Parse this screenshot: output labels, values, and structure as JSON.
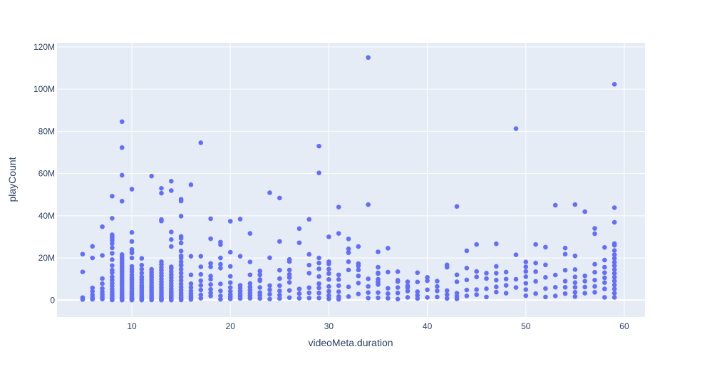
{
  "chart_data": {
    "type": "scatter",
    "title": "",
    "xlabel": "videoMeta.duration",
    "ylabel": "playCount",
    "xlim": [
      2.4,
      62.1
    ],
    "ylim": [
      -8000000,
      122000000
    ],
    "x_ticks": [
      10,
      20,
      30,
      40,
      50,
      60
    ],
    "y_ticks": [
      0,
      20000000,
      40000000,
      60000000,
      80000000,
      100000000,
      120000000
    ],
    "y_tick_labels": [
      "0",
      "20M",
      "40M",
      "60M",
      "80M",
      "100M",
      "120M"
    ],
    "grid": true,
    "legend": "none",
    "colors": {
      "marker": "#636efa",
      "plot_bg": "#e5ecf6",
      "grid": "#ffffff",
      "text": "#2a3f5f"
    },
    "series": [
      {
        "x": [
          5,
          5,
          5,
          5,
          6,
          6,
          6,
          6,
          6,
          6,
          6,
          7,
          7,
          7,
          7,
          7,
          7,
          7,
          7,
          7,
          8,
          8,
          8,
          8,
          8,
          8,
          8,
          8,
          8,
          8,
          8,
          8,
          8,
          8,
          8,
          8,
          8,
          8,
          8,
          8,
          8,
          8,
          8,
          8,
          9,
          9,
          9,
          9,
          9,
          9,
          9,
          9,
          9,
          9,
          9,
          9,
          9,
          9,
          9,
          9,
          9,
          9,
          9,
          9,
          9,
          9,
          9,
          9,
          9,
          9,
          9,
          9,
          9,
          9,
          9,
          10,
          10,
          10,
          10,
          10,
          10,
          10,
          10,
          10,
          10,
          10,
          10,
          10,
          10,
          10,
          10,
          10,
          10,
          10,
          10,
          10,
          10,
          10,
          10,
          10,
          10,
          11,
          11,
          11,
          11,
          11,
          11,
          11,
          11,
          11,
          11,
          11,
          11,
          11,
          11,
          11,
          11,
          11,
          11,
          12,
          12,
          12,
          12,
          12,
          12,
          12,
          12,
          12,
          12,
          12,
          12,
          12,
          12,
          12,
          12,
          13,
          13,
          13,
          13,
          13,
          13,
          13,
          13,
          13,
          13,
          13,
          13,
          13,
          13,
          13,
          13,
          13,
          13,
          13,
          13,
          13,
          13,
          13,
          14,
          14,
          14,
          14,
          14,
          14,
          14,
          14,
          14,
          14,
          14,
          14,
          14,
          14,
          14,
          14,
          14,
          14,
          14,
          14,
          14,
          14,
          15,
          15,
          15,
          15,
          15,
          15,
          15,
          15,
          15,
          15,
          15,
          15,
          15,
          15,
          15,
          15,
          15,
          15,
          15,
          15,
          15,
          15,
          15,
          15,
          16,
          16,
          16,
          16,
          16,
          16,
          16,
          16,
          16,
          16,
          17,
          17,
          17,
          17,
          17,
          17,
          17,
          17,
          17,
          18,
          18,
          18,
          18,
          18,
          18,
          18,
          18,
          18,
          18,
          19,
          19,
          19,
          19,
          19,
          19,
          19,
          19,
          19,
          20,
          20,
          20,
          20,
          20,
          20,
          20,
          20,
          20,
          20,
          21,
          21,
          21,
          21,
          21,
          21,
          21,
          21,
          22,
          22,
          22,
          22,
          22,
          22,
          22,
          22,
          22,
          23,
          23,
          23,
          23,
          23,
          23,
          23,
          23,
          24,
          24,
          24,
          24,
          24,
          24,
          25,
          25,
          25,
          25,
          25,
          25,
          25,
          25,
          26,
          26,
          26,
          26,
          26,
          26,
          26,
          26,
          27,
          27,
          27,
          27,
          27,
          28,
          28,
          28,
          28,
          28,
          28,
          28,
          29,
          29,
          29,
          29,
          29,
          29,
          29,
          29,
          29,
          29,
          30,
          30,
          30,
          30,
          30,
          30,
          30,
          30,
          30,
          30,
          31,
          31,
          31,
          31,
          31,
          31,
          31,
          31,
          32,
          32,
          32,
          32,
          32,
          32,
          32,
          32,
          33,
          33,
          33,
          33,
          33,
          33,
          33,
          34,
          34,
          34,
          34,
          34,
          34,
          35,
          35,
          35,
          35,
          35,
          35,
          35,
          35,
          35,
          36,
          36,
          36,
          36,
          36,
          37,
          37,
          37,
          37,
          37,
          37,
          38,
          38,
          38,
          38,
          38,
          39,
          39,
          39,
          39,
          39,
          40,
          40,
          40,
          40,
          41,
          41,
          41,
          41,
          42,
          42,
          42,
          42,
          42,
          43,
          43,
          43,
          43,
          43,
          43,
          44,
          44,
          44,
          44,
          44,
          45,
          45,
          45,
          45,
          45,
          46,
          46,
          46,
          46,
          47,
          47,
          47,
          47,
          47,
          47,
          48,
          48,
          48,
          48,
          49,
          49,
          49,
          49,
          50,
          50,
          50,
          50,
          50,
          50,
          50,
          51,
          51,
          51,
          51,
          51,
          52,
          52,
          52,
          52,
          52,
          53,
          53,
          53,
          53,
          54,
          54,
          54,
          54,
          54,
          54,
          55,
          55,
          55,
          55,
          55,
          55,
          55,
          55,
          56,
          56,
          56,
          56,
          56,
          57,
          57,
          57,
          57,
          57,
          57,
          57,
          58,
          58,
          58,
          58,
          58,
          58,
          58,
          58,
          59,
          59,
          59,
          59,
          59,
          59,
          59,
          59,
          59,
          59,
          59,
          59,
          59,
          59,
          59,
          59,
          59,
          59
        ],
        "y": [
          21800000,
          13400000,
          1200000,
          300000,
          25500000,
          20000000,
          5800000,
          4200000,
          2500000,
          1200000,
          400000,
          34800000,
          21200000,
          10200000,
          7800000,
          5500000,
          4000000,
          2600000,
          1400000,
          500000,
          49300000,
          38800000,
          31000000,
          30000000,
          29200000,
          28300000,
          26800000,
          24800000,
          22200000,
          19200000,
          16400000,
          14200000,
          13000000,
          11000000,
          9500000,
          8000000,
          6600000,
          5200000,
          4000000,
          2900000,
          1900000,
          1000000,
          300000,
          100000,
          84600000,
          72300000,
          59200000,
          46900000,
          21600000,
          20500000,
          19500000,
          18500000,
          17500000,
          16500000,
          15500000,
          14400000,
          13500000,
          12500000,
          11500000,
          10400000,
          9400000,
          8400000,
          7400000,
          6400000,
          5400000,
          4500000,
          3600000,
          2800000,
          2000000,
          1400000,
          900000,
          500000,
          250000,
          100000,
          50000,
          52600000,
          32100000,
          27800000,
          24000000,
          22800000,
          20000000,
          16000000,
          14700000,
          13500000,
          12000000,
          10800000,
          9700000,
          8600000,
          7500000,
          6400000,
          5300000,
          4300000,
          3400000,
          2600000,
          1800000,
          1200000,
          800000,
          400000,
          200000,
          50000,
          22400000,
          16600000,
          14700000,
          12800000,
          11000000,
          9700000,
          8400000,
          7100000,
          6000000,
          5000000,
          4000000,
          3000000,
          2000000,
          1300000,
          800000,
          400000,
          200000,
          50000,
          19800000,
          14600000,
          13300000,
          12100000,
          10900000,
          9600000,
          8400000,
          7200000,
          6000000,
          4900000,
          3800000,
          2800000,
          1900000,
          1100000,
          500000,
          100000,
          58800000,
          53000000,
          38200000,
          37500000,
          18200000,
          16900000,
          15500000,
          14200000,
          12800000,
          11500000,
          10100000,
          8800000,
          7500000,
          6200000,
          5000000,
          3900000,
          2900000,
          2000000,
          1300000,
          800000,
          400000,
          150000,
          50000,
          50700000,
          32300000,
          28700000,
          25400000,
          15800000,
          15000000,
          13500000,
          12000000,
          10600000,
          9200000,
          7900000,
          6600000,
          5400000,
          4300000,
          3300000,
          2400000,
          1600000,
          1000000,
          500000,
          200000,
          50000,
          56400000,
          51900000,
          47800000,
          47000000,
          39800000,
          30200000,
          29300000,
          27100000,
          21000000,
          20000000,
          18200000,
          16400000,
          14600000,
          12800000,
          11000000,
          9300000,
          7700000,
          6200000,
          4800000,
          3500000,
          2400000,
          1400000,
          600000,
          100000,
          23300000,
          16700000,
          12000000,
          7800000,
          6000000,
          4400000,
          3100000,
          2000000,
          1100000,
          300000,
          54700000,
          20800000,
          15800000,
          12200000,
          9200000,
          7000000,
          4800000,
          2500000,
          900000,
          74600000,
          20800000,
          17400000,
          15800000,
          11400000,
          9900000,
          7400000,
          5100000,
          3400000,
          2000000,
          38600000,
          29100000,
          27500000,
          20000000,
          15200000,
          7700000,
          4400000,
          2000000,
          400000,
          26300000,
          17000000,
          16000000,
          11300000,
          8300000,
          6000000,
          4200000,
          2700000,
          1600000,
          600000,
          37400000,
          22700000,
          7000000,
          5700000,
          4300000,
          3000000,
          1900000,
          800000,
          38400000,
          20800000,
          12000000,
          7900000,
          6300000,
          4800000,
          3400000,
          2100000,
          900000,
          31600000,
          18100000,
          13800000,
          9800000,
          6000000,
          3600000,
          2200000,
          800000,
          12000000,
          9200000,
          6900000,
          4900000,
          2800000,
          500000,
          50900000,
          20100000,
          14200000,
          10200000,
          6900000,
          4400000,
          2400000,
          800000,
          48400000,
          27800000,
          19300000,
          18300000,
          12200000,
          8400000,
          4600000,
          1200000,
          14300000,
          10700000,
          5300000,
          3100000,
          900000,
          33900000,
          27200000,
          16600000,
          12800000,
          5900000,
          3500000,
          1000000,
          38300000,
          21700000,
          20000000,
          17600000,
          14800000,
          11200000,
          7800000,
          5800000,
          3400000,
          1000000,
          73000000,
          60300000,
          30000000,
          18200000,
          12600000,
          9800000,
          6500000,
          4200000,
          2200000,
          600000,
          17200000,
          14700000,
          12000000,
          9800000,
          6900000,
          4000000,
          1700000,
          400000,
          44100000,
          31600000,
          29000000,
          22500000,
          18200000,
          14300000,
          6300000,
          1700000,
          24300000,
          22500000,
          17300000,
          14300000,
          11500000,
          8100000,
          2900000,
          25400000,
          16200000,
          10100000,
          6500000,
          3600000,
          1000000,
          115000000,
          45300000,
          22900000,
          15600000,
          12900000,
          9900000,
          7400000,
          3600000,
          1100000,
          12600000,
          8500000,
          5600000,
          3100000,
          900000,
          24600000,
          13300000,
          8800000,
          6000000,
          3400000,
          500000,
          13500000,
          9400000,
          6800000,
          4300000,
          1300000,
          8700000,
          6000000,
          4000000,
          2300000,
          800000,
          13000000,
          8600000,
          4900000,
          1300000,
          10800000,
          9200000,
          4400000,
          1500000,
          9000000,
          6500000,
          4500000,
          2600000,
          800000,
          16700000,
          15600000,
          12000000,
          44400000,
          8700000,
          3300000,
          1800000,
          600000,
          23400000,
          15200000,
          9600000,
          4800000,
          2000000,
          26400000,
          13600000,
          11000000,
          5000000,
          2600000,
          12800000,
          10200000,
          5400000,
          1500000,
          26700000,
          16000000,
          12800000,
          9500000,
          6300000,
          3800000,
          13300000,
          10000000,
          7000000,
          3300000,
          81300000,
          21500000,
          9900000,
          6000000,
          18100000,
          15800000,
          13600000,
          11100000,
          8000000,
          5000000,
          2100000,
          26400000,
          17600000,
          13500000,
          8900000,
          3100000,
          25100000,
          16700000,
          10800000,
          5500000,
          1500000,
          45000000,
          11900000,
          6100000,
          2000000,
          24700000,
          21800000,
          14200000,
          9000000,
          6100000,
          3100000,
          45300000,
          21000000,
          14500000,
          11000000,
          8300000,
          6100000,
          3700000,
          1700000,
          41900000,
          11500000,
          9000000,
          6200000,
          3300000,
          34000000,
          31500000,
          17000000,
          13200000,
          9500000,
          6500000,
          3700000,
          25000000,
          19000000,
          15600000,
          13000000,
          10600000,
          8300000,
          5300000,
          1300000,
          102300000,
          43800000,
          36900000,
          26800000,
          26000000,
          23500000,
          21500000,
          19800000,
          18000000,
          16300000,
          14500000,
          12700000,
          10900000,
          9100000,
          7200000,
          5300000,
          3300000,
          1300000
        ]
      }
    ]
  }
}
